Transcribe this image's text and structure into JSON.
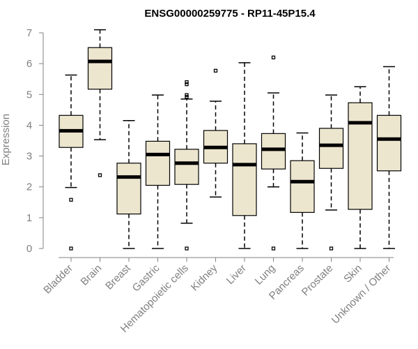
{
  "chart_data": {
    "type": "boxplot",
    "title": "ENSG00000259775 - RP11-45P15.4",
    "xlabel": "",
    "ylabel": "Expression",
    "ylim": [
      0,
      7
    ],
    "yticks": [
      0,
      1,
      2,
      3,
      4,
      5,
      6,
      7
    ],
    "grid": false,
    "colors": {
      "box_fill": "#ede6cf",
      "axis": "#808080",
      "text": "#000000"
    },
    "categories": [
      "Bladder",
      "Brain",
      "Breast",
      "Gastric",
      "Hematopoietic cells",
      "Kidney",
      "Liver",
      "Lung",
      "Pancreas",
      "Prostate",
      "Skin",
      "Unknown / Other"
    ],
    "boxes": [
      {
        "name": "Bladder",
        "whisker_low": 1.98,
        "q1": 3.28,
        "median": 3.82,
        "q3": 4.32,
        "whisker_high": 5.63,
        "outliers": [
          1.58,
          0.0
        ]
      },
      {
        "name": "Brain",
        "whisker_low": 3.53,
        "q1": 5.17,
        "median": 6.07,
        "q3": 6.52,
        "whisker_high": 7.1,
        "outliers": [
          2.38
        ]
      },
      {
        "name": "Breast",
        "whisker_low": 0.0,
        "q1": 1.12,
        "median": 2.32,
        "q3": 2.77,
        "whisker_high": 4.15,
        "outliers": []
      },
      {
        "name": "Gastric",
        "whisker_low": 0.0,
        "q1": 2.05,
        "median": 3.05,
        "q3": 3.48,
        "whisker_high": 4.98,
        "outliers": []
      },
      {
        "name": "Hematopoietic cells",
        "whisker_low": 0.82,
        "q1": 2.08,
        "median": 2.77,
        "q3": 3.22,
        "whisker_high": 4.85,
        "outliers": [
          5.4,
          5.33,
          4.98,
          4.92,
          0.0
        ]
      },
      {
        "name": "Kidney",
        "whisker_low": 1.67,
        "q1": 2.77,
        "median": 3.28,
        "q3": 3.83,
        "whisker_high": 4.78,
        "outliers": [
          5.77
        ]
      },
      {
        "name": "Liver",
        "whisker_low": 0.0,
        "q1": 1.07,
        "median": 2.72,
        "q3": 3.4,
        "whisker_high": 6.03,
        "outliers": []
      },
      {
        "name": "Lung",
        "whisker_low": 2.0,
        "q1": 2.58,
        "median": 3.22,
        "q3": 3.73,
        "whisker_high": 5.05,
        "outliers": [
          6.2,
          0.0
        ]
      },
      {
        "name": "Pancreas",
        "whisker_low": 0.0,
        "q1": 1.17,
        "median": 2.17,
        "q3": 2.85,
        "whisker_high": 3.75,
        "outliers": []
      },
      {
        "name": "Prostate",
        "whisker_low": 1.25,
        "q1": 2.6,
        "median": 3.35,
        "q3": 3.9,
        "whisker_high": 4.98,
        "outliers": [
          0.0
        ]
      },
      {
        "name": "Skin",
        "whisker_low": 0.0,
        "q1": 1.27,
        "median": 4.08,
        "q3": 4.73,
        "whisker_high": 5.25,
        "outliers": []
      },
      {
        "name": "Unknown / Other",
        "whisker_low": 0.0,
        "q1": 2.52,
        "median": 3.55,
        "q3": 4.32,
        "whisker_high": 5.9,
        "outliers": []
      }
    ]
  }
}
